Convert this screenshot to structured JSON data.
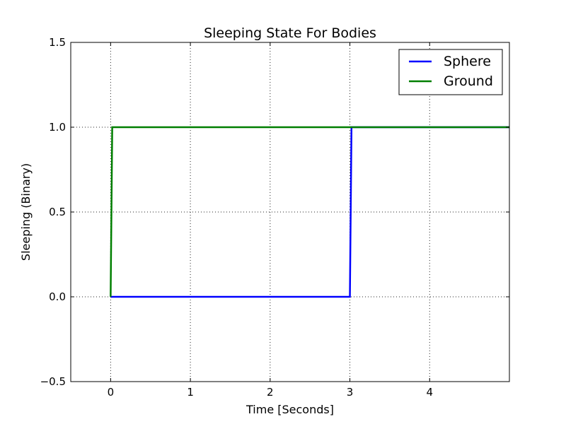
{
  "chart_data": {
    "type": "line",
    "title": "Sleeping State For Bodies",
    "xlabel": "Time [Seconds]",
    "ylabel": "Sleeping (Binary)",
    "xlim": [
      -0.5,
      5.0
    ],
    "ylim": [
      -0.5,
      1.5
    ],
    "xticks": [
      0,
      1,
      2,
      3,
      4
    ],
    "xtick_labels": [
      "0",
      "1",
      "2",
      "3",
      "4"
    ],
    "yticks": [
      -0.5,
      0.0,
      0.5,
      1.0,
      1.5
    ],
    "ytick_labels": [
      "−0.5",
      "0.0",
      "0.5",
      "1.0",
      "1.5"
    ],
    "grid": true,
    "legend_position": "top-right",
    "series": [
      {
        "name": "Sphere",
        "color": "#0000ff",
        "x": [
          0.0,
          3.0,
          3.02,
          5.0
        ],
        "y": [
          0,
          0,
          1,
          1
        ]
      },
      {
        "name": "Ground",
        "color": "#007f00",
        "x": [
          0.0,
          0.02,
          5.0
        ],
        "y": [
          0,
          1,
          1
        ]
      }
    ]
  }
}
